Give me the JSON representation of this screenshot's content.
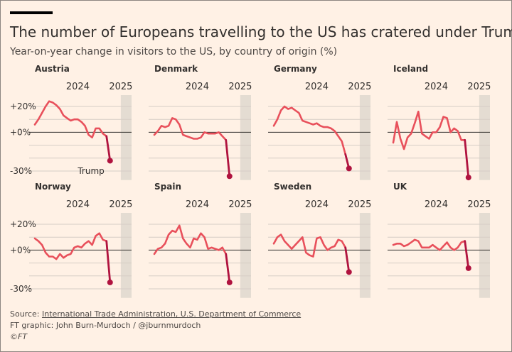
{
  "title": "The number of Europeans travelling to the US has cratered under Trump",
  "subtitle": "Year-on-year change in visitors to the US, by country of origin (%)",
  "footer": {
    "source_prefix": "Source: ",
    "source_link": "International Trade Administration, U.S. Department of Commerce",
    "credit": "FT graphic: John Burn-Murdoch / @jburnmurdoch",
    "copyright": "©FT"
  },
  "colors": {
    "background": "#fff1e5",
    "line": "#e8505b",
    "trump_line": "#b0133f",
    "trump_band": "#e4dcd2",
    "text": "#33302e",
    "gridline": "#d6cdc5"
  },
  "chart_data": {
    "type": "line",
    "layout": "small-multiples",
    "grid": true,
    "y_tick_values": [
      20,
      0,
      -30
    ],
    "y_tick_labels": [
      "+20%",
      "+0%",
      "-30%"
    ],
    "ylim": [
      -35,
      25
    ],
    "x_tick_values": [
      2024,
      2025
    ],
    "x_tick_labels": [
      "2024",
      "2025"
    ],
    "x_start": 2023,
    "x_step": 0.0833333,
    "xlim": [
      2023,
      2025.25
    ],
    "trump_period_start": 2025.0,
    "annotation": "Trump",
    "annotation_panel": "Austria",
    "panels": [
      {
        "name": "Austria",
        "values": [
          6,
          10,
          15,
          20,
          24,
          23,
          21,
          18,
          13,
          11,
          9,
          10,
          10,
          8,
          5,
          -2,
          -4,
          3,
          3,
          -1,
          -3,
          -22
        ]
      },
      {
        "name": "Denmark",
        "values": [
          -2,
          1,
          5,
          4,
          5,
          11,
          10,
          6,
          -2,
          -3,
          -4,
          -5,
          -5,
          -4,
          0,
          -1,
          -1,
          -1,
          0,
          -3,
          -6,
          -34
        ]
      },
      {
        "name": "Germany",
        "values": [
          5,
          10,
          17,
          20,
          18,
          19,
          17,
          15,
          9,
          8,
          7,
          6,
          7,
          5,
          4,
          4,
          3,
          1,
          -3,
          -7,
          -17,
          -28
        ]
      },
      {
        "name": "Iceland",
        "values": [
          -8,
          8,
          -5,
          -13,
          -4,
          -1,
          7,
          16,
          -1,
          -3,
          -5,
          0,
          0,
          4,
          12,
          11,
          0,
          3,
          1,
          -6,
          -6,
          -35
        ]
      },
      {
        "name": "Norway",
        "values": [
          9,
          7,
          4,
          -2,
          -5,
          -5,
          -7,
          -3,
          -6,
          -4,
          -3,
          2,
          3,
          2,
          5,
          7,
          4,
          11,
          13,
          8,
          7,
          -25
        ]
      },
      {
        "name": "Spain",
        "values": [
          -3,
          1,
          2,
          5,
          12,
          15,
          14,
          19,
          9,
          5,
          2,
          9,
          8,
          13,
          10,
          1,
          2,
          1,
          0,
          2,
          -3,
          -25
        ]
      },
      {
        "name": "Sweden",
        "values": [
          5,
          10,
          12,
          7,
          4,
          1,
          4,
          7,
          10,
          -2,
          -4,
          -5,
          9,
          10,
          4,
          0,
          2,
          3,
          8,
          7,
          2,
          -17
        ]
      },
      {
        "name": "UK",
        "values": [
          4,
          5,
          5,
          3,
          4,
          6,
          8,
          7,
          2,
          2,
          2,
          4,
          2,
          0,
          3,
          6,
          2,
          0,
          2,
          6,
          7,
          -14
        ]
      }
    ]
  }
}
